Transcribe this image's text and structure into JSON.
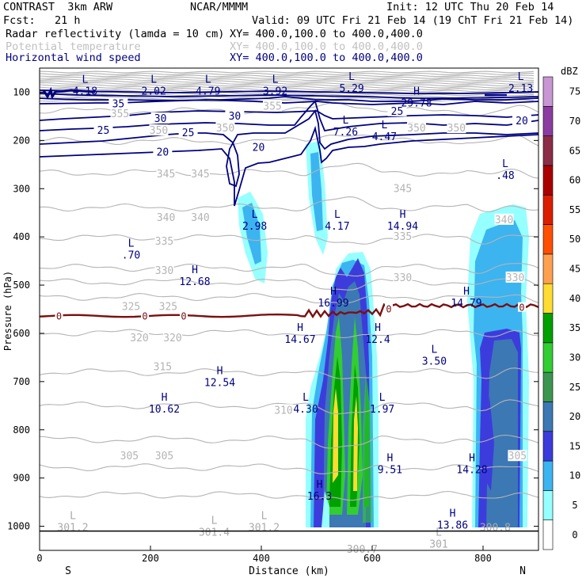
{
  "header": {
    "model": "CONTRAST  3km ARW",
    "org": "NCAR/MMMM",
    "init": "Init: 12 UTC Thu 20 Feb 14",
    "fcst": "Fcst:   21 h",
    "valid": "Valid: 09 UTC Fri 21 Feb 14 (19 ChT Fri 21 Feb 14)",
    "fields": [
      {
        "name": "Radar reflectivity (lamda = 10 cm)",
        "xy": "XY= 400.0,100.0 to 400.0,400.0"
      },
      {
        "name": "Potential temperature",
        "xy": "XY= 400.0,100.0 to 400.0,400.0"
      },
      {
        "name": "Horizontal wind speed",
        "xy": "XY= 400.0,100.0 to 400.0,400.0"
      }
    ]
  },
  "colors": {
    "wind": "#000080",
    "theta": "#b4b4b4",
    "zero_line": "#7a1010",
    "text_gray": "#c0c0c0"
  },
  "chart_data": {
    "type": "heatmap",
    "title": "Vertical cross-section",
    "xlabel": "Distance (km)",
    "ylabel": "Pressure (hPa)",
    "xlim": [
      0,
      900
    ],
    "ylim": [
      1050,
      50
    ],
    "x_ticks": [
      0,
      200,
      400,
      600,
      800
    ],
    "y_ticks": [
      100,
      200,
      300,
      400,
      500,
      600,
      700,
      800,
      900,
      1000
    ],
    "x_end_labels": {
      "left": "S",
      "right": "N"
    },
    "colorbar": {
      "unit": "dBZ",
      "levels": [
        0,
        5,
        10,
        15,
        20,
        25,
        30,
        35,
        40,
        45,
        50,
        55,
        60,
        65,
        70,
        75
      ],
      "colors": [
        "#ffffff",
        "#96ffff",
        "#3cb4f0",
        "#3c3cdc",
        "#3c78b4",
        "#3c9650",
        "#32cd32",
        "#00a000",
        "#ffdc32",
        "#ffa050",
        "#ff5000",
        "#dc1e00",
        "#aa0000",
        "#8b2d46",
        "#8c3ca0",
        "#c896d2"
      ]
    },
    "wind_contours": [
      {
        "label": "35",
        "x": 142,
        "p": 125
      },
      {
        "label": "30",
        "x": 218,
        "p": 155
      },
      {
        "label": "30",
        "x": 352,
        "p": 150
      },
      {
        "label": "25",
        "x": 115,
        "p": 180
      },
      {
        "label": "25",
        "x": 268,
        "p": 185
      },
      {
        "label": "20",
        "x": 222,
        "p": 225
      },
      {
        "label": "20",
        "x": 395,
        "p": 215
      },
      {
        "label": "25",
        "x": 645,
        "p": 140
      },
      {
        "label": "20",
        "x": 870,
        "p": 160
      }
    ],
    "theta_contours": [
      {
        "label": "355",
        "x": 145,
        "p": 145
      },
      {
        "label": "355",
        "x": 420,
        "p": 130
      },
      {
        "label": "350",
        "x": 215,
        "p": 180
      },
      {
        "label": "350",
        "x": 335,
        "p": 175
      },
      {
        "label": "350",
        "x": 680,
        "p": 175
      },
      {
        "label": "350",
        "x": 752,
        "p": 175
      },
      {
        "label": "345",
        "x": 228,
        "p": 270
      },
      {
        "label": "345",
        "x": 290,
        "p": 270
      },
      {
        "label": "345",
        "x": 655,
        "p": 300
      },
      {
        "label": "340",
        "x": 228,
        "p": 360
      },
      {
        "label": "340",
        "x": 290,
        "p": 360
      },
      {
        "label": "340",
        "x": 838,
        "p": 365
      },
      {
        "label": "335",
        "x": 225,
        "p": 410
      },
      {
        "label": "335",
        "x": 655,
        "p": 400
      },
      {
        "label": "330",
        "x": 225,
        "p": 470
      },
      {
        "label": "330",
        "x": 655,
        "p": 485
      },
      {
        "label": "330",
        "x": 858,
        "p": 485
      },
      {
        "label": "325",
        "x": 165,
        "p": 545
      },
      {
        "label": "325",
        "x": 232,
        "p": 545
      },
      {
        "label": "320",
        "x": 180,
        "p": 610
      },
      {
        "label": "320",
        "x": 240,
        "p": 610
      },
      {
        "label": "315",
        "x": 222,
        "p": 670
      },
      {
        "label": "310",
        "x": 440,
        "p": 760
      },
      {
        "label": "305",
        "x": 162,
        "p": 855
      },
      {
        "label": "305",
        "x": 225,
        "p": 855
      },
      {
        "label": "305",
        "x": 862,
        "p": 855
      }
    ],
    "zero_labels": [
      {
        "label": "0",
        "x": 35,
        "p": 565
      },
      {
        "label": "0",
        "x": 190,
        "p": 565
      },
      {
        "label": "0",
        "x": 260,
        "p": 565
      },
      {
        "label": "0",
        "x": 630,
        "p": 550
      },
      {
        "label": "0",
        "x": 870,
        "p": 547
      }
    ],
    "extrema": [
      {
        "kind": "L",
        "value": "4.18",
        "x": 82,
        "p": 80,
        "color": "navy"
      },
      {
        "kind": "L",
        "value": "2.02",
        "x": 206,
        "p": 80,
        "color": "navy"
      },
      {
        "kind": "L",
        "value": "4.79",
        "x": 304,
        "p": 80,
        "color": "navy"
      },
      {
        "kind": "L",
        "value": "3.92",
        "x": 425,
        "p": 80,
        "color": "navy"
      },
      {
        "kind": "L",
        "value": "5.29",
        "x": 563,
        "p": 75,
        "color": "navy"
      },
      {
        "kind": "L",
        "value": "2.13",
        "x": 868,
        "p": 75,
        "color": "navy"
      },
      {
        "kind": "H",
        "value": "29.78",
        "x": 680,
        "p": 105,
        "color": "navy"
      },
      {
        "kind": "L",
        "value": "7.26",
        "x": 552,
        "p": 165,
        "color": "navy"
      },
      {
        "kind": "L",
        "value": "4.47",
        "x": 622,
        "p": 175,
        "color": "navy"
      },
      {
        "kind": "L",
        "value": ".48",
        "x": 840,
        "p": 255,
        "color": "navy"
      },
      {
        "kind": "L",
        "value": "2.98",
        "x": 388,
        "p": 360,
        "color": "navy"
      },
      {
        "kind": "L",
        "value": "4.17",
        "x": 537,
        "p": 360,
        "color": "navy"
      },
      {
        "kind": "H",
        "value": "14.94",
        "x": 655,
        "p": 360,
        "color": "navy"
      },
      {
        "kind": "L",
        "value": ".70",
        "x": 165,
        "p": 420,
        "color": "navy"
      },
      {
        "kind": "H",
        "value": "12.68",
        "x": 280,
        "p": 475,
        "color": "navy"
      },
      {
        "kind": "H",
        "value": "16.99",
        "x": 530,
        "p": 520,
        "color": "navy"
      },
      {
        "kind": "H",
        "value": "14.79",
        "x": 770,
        "p": 520,
        "color": "navy"
      },
      {
        "kind": "H",
        "value": "14.67",
        "x": 470,
        "p": 595,
        "color": "navy"
      },
      {
        "kind": "H",
        "value": "12.4",
        "x": 610,
        "p": 595,
        "color": "navy"
      },
      {
        "kind": "L",
        "value": "3.50",
        "x": 712,
        "p": 640,
        "color": "navy"
      },
      {
        "kind": "H",
        "value": "12.54",
        "x": 325,
        "p": 685,
        "color": "navy"
      },
      {
        "kind": "H",
        "value": "10.62",
        "x": 225,
        "p": 740,
        "color": "navy"
      },
      {
        "kind": "L",
        "value": "4.30",
        "x": 480,
        "p": 740,
        "color": "navy"
      },
      {
        "kind": "L",
        "value": "1.97",
        "x": 618,
        "p": 740,
        "color": "navy"
      },
      {
        "kind": "H",
        "value": "9.51",
        "x": 632,
        "p": 865,
        "color": "navy"
      },
      {
        "kind": "H",
        "value": "14.28",
        "x": 780,
        "p": 865,
        "color": "navy"
      },
      {
        "kind": "H",
        "value": "16.3",
        "x": 505,
        "p": 920,
        "color": "navy"
      },
      {
        "kind": "H",
        "value": "13.86",
        "x": 745,
        "p": 980,
        "color": "navy"
      },
      {
        "kind": "L",
        "value": "301.2",
        "x": 60,
        "p": 985,
        "color": "gray"
      },
      {
        "kind": "L",
        "value": "301.4",
        "x": 315,
        "p": 995,
        "color": "gray"
      },
      {
        "kind": "L",
        "value": "301.2",
        "x": 405,
        "p": 985,
        "color": "gray"
      },
      {
        "kind": "L",
        "value": "301",
        "x": 720,
        "p": 1020,
        "color": "gray"
      },
      {
        "kind": "",
        "value": "300.8",
        "x": 822,
        "p": 985,
        "color": "gray"
      },
      {
        "kind": "",
        "value": "300.7",
        "x": 582,
        "p": 1030,
        "color": "gray"
      }
    ]
  }
}
